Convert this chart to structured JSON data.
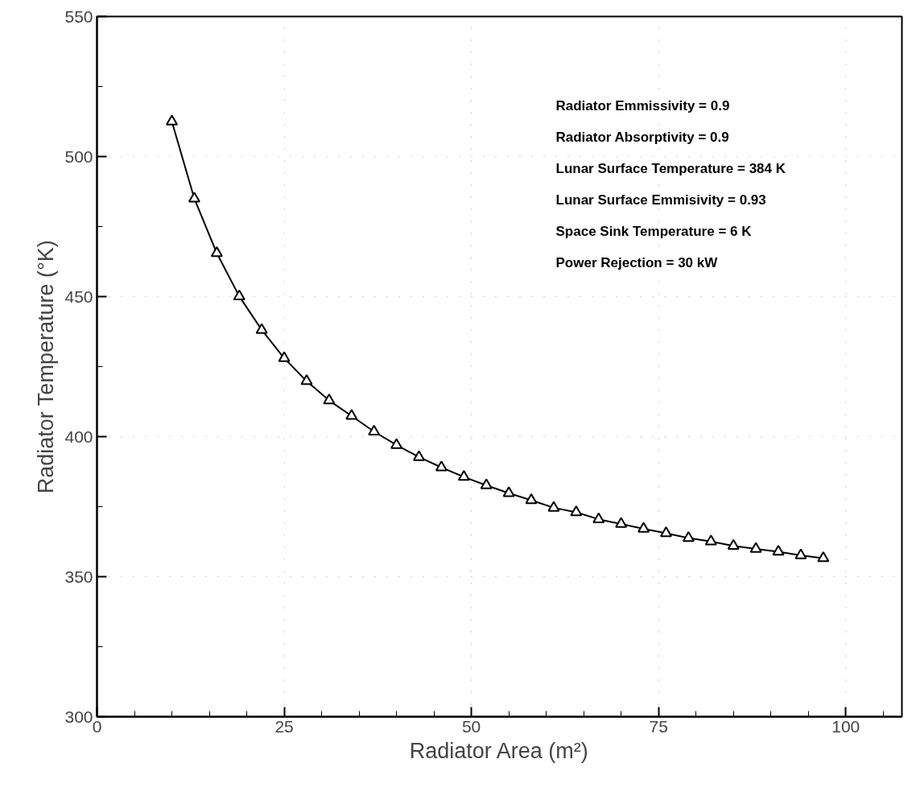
{
  "chart_data": {
    "type": "line",
    "xlabel": "Radiator Area (m²)",
    "ylabel": "Radiator Temperature (°K)",
    "annotations": [
      "Radiator Emmissivity = 0.9",
      "Radiator Absorptivity = 0.9",
      "Lunar Surface Temperature = 384 K",
      "Lunar Surface Emmisivity = 0.93",
      "Space Sink Temperature = 6 K",
      "Power Rejection = 30 kW"
    ],
    "x": [
      10,
      13,
      16,
      19,
      22,
      25,
      28,
      31,
      34,
      37,
      40,
      43,
      46,
      49,
      52,
      55,
      58,
      61,
      64,
      67,
      70,
      73,
      76,
      79,
      82,
      85,
      88,
      91,
      94,
      97
    ],
    "series": [
      {
        "color": "#000000",
        "values": [
          512.5,
          485.0,
          465.5,
          450.1,
          438.1,
          428.0,
          419.8,
          412.9,
          407.4,
          401.8,
          397.0,
          392.7,
          389.0,
          385.6,
          382.6,
          379.8,
          377.3,
          374.6,
          373.0,
          370.5,
          368.8,
          367.1,
          365.5,
          363.8,
          362.6,
          361.0,
          359.9,
          358.9,
          357.6,
          356.6
        ]
      }
    ],
    "marker": "triangle",
    "line_style": "solid",
    "xlim": [
      0,
      107.5
    ],
    "ylim": [
      300,
      550
    ],
    "xticks": [
      0,
      {
        "value": 5,
        "label": null
      },
      {
        "value": 10,
        "label": null
      },
      {
        "value": 15,
        "label": null
      },
      {
        "value": 20,
        "label": null
      },
      25,
      {
        "value": 30,
        "label": null
      },
      {
        "value": 35,
        "label": null
      },
      {
        "value": 40,
        "label": null
      },
      {
        "value": 45,
        "label": null
      },
      50,
      {
        "value": 55,
        "label": null
      },
      {
        "value": 60,
        "label": null
      },
      {
        "value": 65,
        "label": null
      },
      {
        "value": 70,
        "label": null
      },
      75,
      {
        "value": 80,
        "label": null
      },
      {
        "value": 85,
        "label": null
      },
      {
        "value": 90,
        "label": null
      },
      {
        "value": 95,
        "label": null
      },
      100,
      {
        "value": 105,
        "label": null
      }
    ],
    "yticks": [
      300,
      {
        "value": 325,
        "label": null
      },
      350,
      {
        "value": 375,
        "label": null
      },
      400,
      {
        "value": 425,
        "label": null
      },
      450,
      {
        "value": 475,
        "label": null
      },
      500,
      {
        "value": 525,
        "label": null
      },
      550
    ],
    "grid": true
  }
}
